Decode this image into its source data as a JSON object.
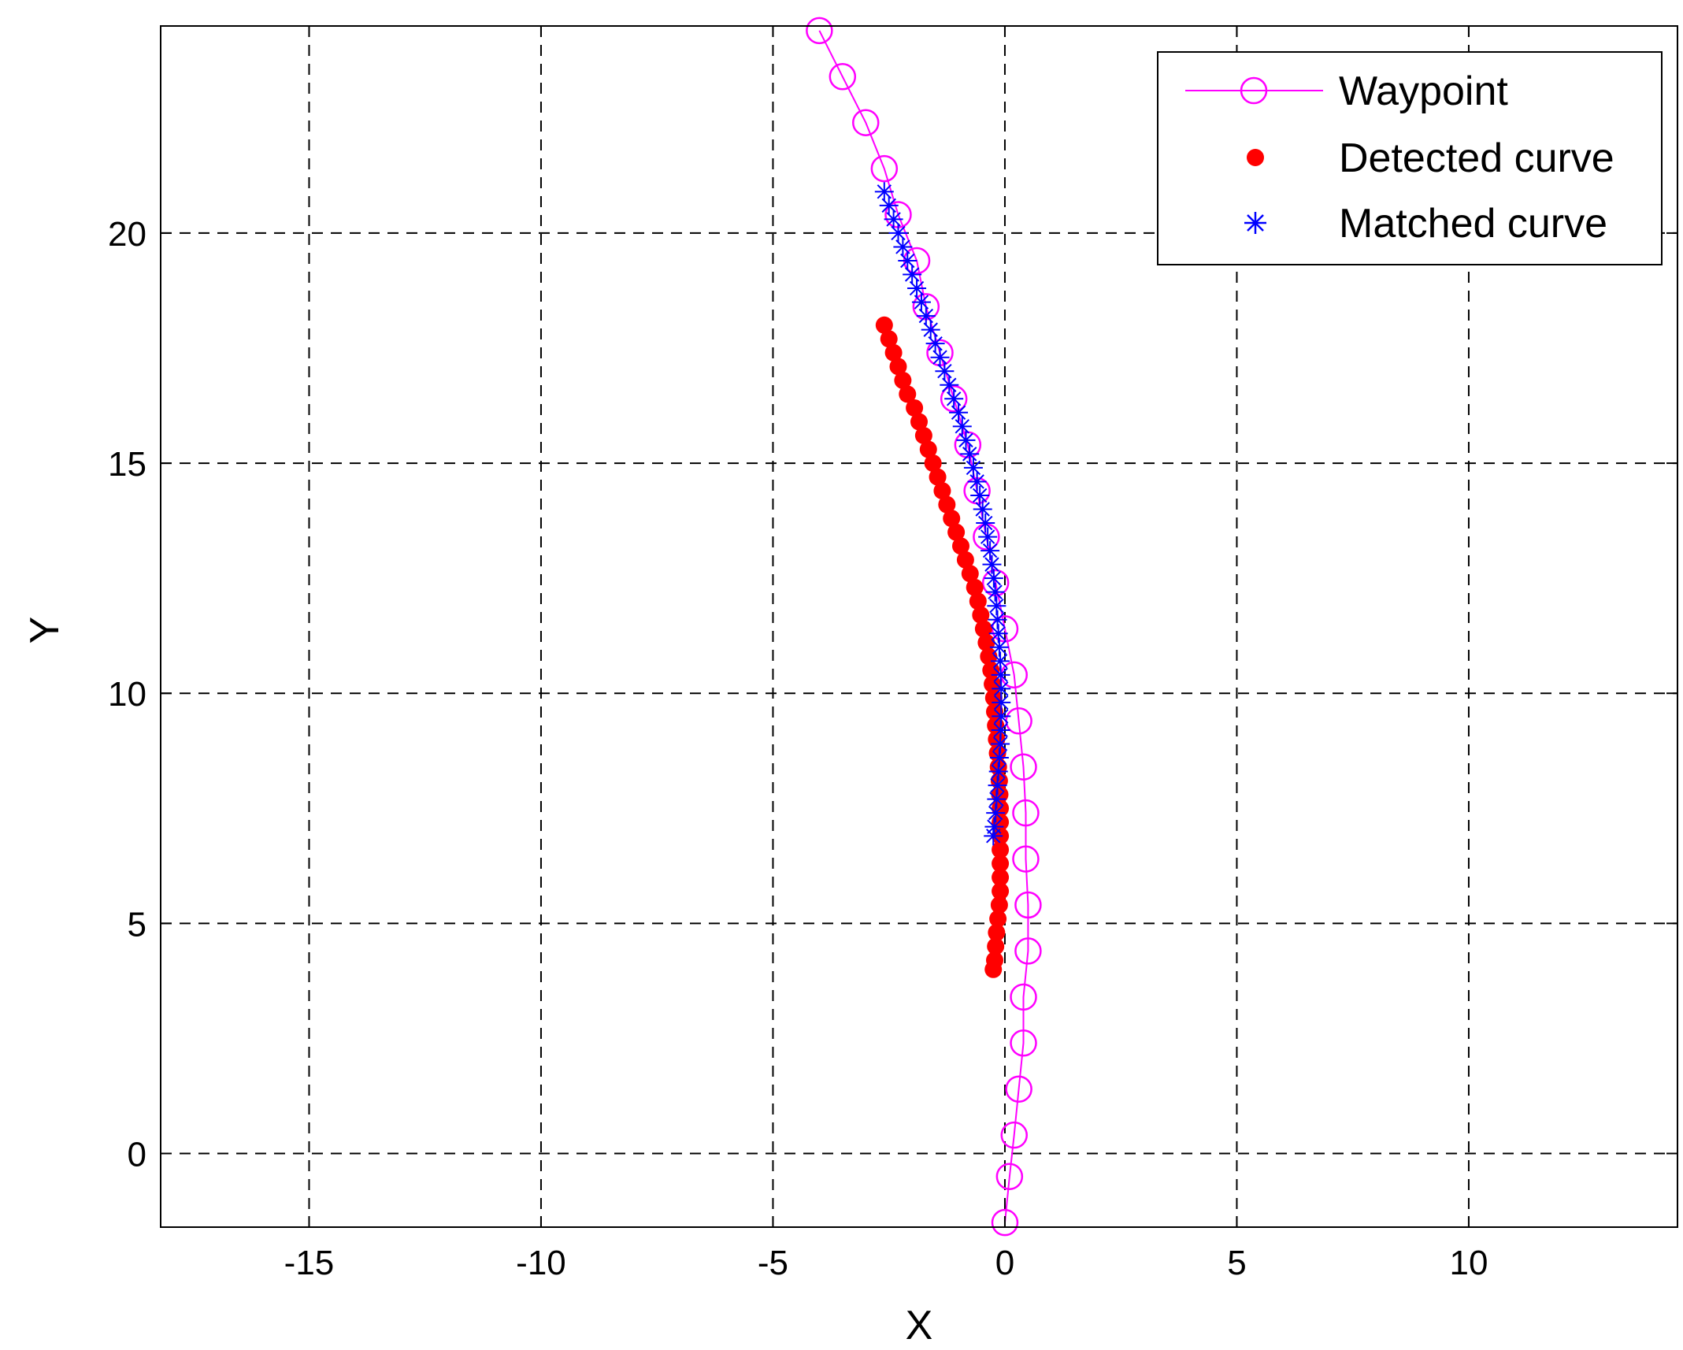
{
  "chart_data": {
    "type": "line",
    "title": "",
    "xlabel": "X",
    "ylabel": "Y",
    "xlim": [
      -18.2,
      14.5
    ],
    "ylim": [
      -1.6,
      24.5
    ],
    "xticks": [
      -15,
      -10,
      -5,
      0,
      5,
      10
    ],
    "yticks": [
      0,
      5,
      10,
      15,
      20
    ],
    "xtick_labels": [
      "-15",
      "-10",
      "-5",
      "0",
      "5",
      "10"
    ],
    "ytick_labels": [
      "0",
      "5",
      "10",
      "15",
      "20"
    ],
    "grid": true,
    "legend_position": "top-right",
    "series": [
      {
        "name": "Waypoint",
        "marker": "open-circle",
        "line": "solid",
        "color": "#ff00ff",
        "points": [
          [
            -4.0,
            24.4
          ],
          [
            -3.5,
            23.4
          ],
          [
            -3.0,
            22.4
          ],
          [
            -2.6,
            21.4
          ],
          [
            -2.3,
            20.4
          ],
          [
            -1.9,
            19.4
          ],
          [
            -1.7,
            18.4
          ],
          [
            -1.4,
            17.4
          ],
          [
            -1.1,
            16.4
          ],
          [
            -0.8,
            15.4
          ],
          [
            -0.6,
            14.4
          ],
          [
            -0.4,
            13.4
          ],
          [
            -0.2,
            12.4
          ],
          [
            0.0,
            11.4
          ],
          [
            0.2,
            10.4
          ],
          [
            0.3,
            9.4
          ],
          [
            0.4,
            8.4
          ],
          [
            0.45,
            7.4
          ],
          [
            0.45,
            6.4
          ],
          [
            0.5,
            5.4
          ],
          [
            0.5,
            4.4
          ],
          [
            0.4,
            3.4
          ],
          [
            0.4,
            2.4
          ],
          [
            0.3,
            1.4
          ],
          [
            0.2,
            0.4
          ],
          [
            0.1,
            -0.5
          ],
          [
            0.0,
            -1.5
          ]
        ]
      },
      {
        "name": "Detected curve",
        "marker": "filled-circle",
        "line": "none",
        "color": "#ff0000",
        "points": [
          [
            -2.6,
            18.0
          ],
          [
            -2.5,
            17.7
          ],
          [
            -2.4,
            17.4
          ],
          [
            -2.3,
            17.1
          ],
          [
            -2.2,
            16.8
          ],
          [
            -2.1,
            16.5
          ],
          [
            -1.95,
            16.2
          ],
          [
            -1.85,
            15.9
          ],
          [
            -1.75,
            15.6
          ],
          [
            -1.65,
            15.3
          ],
          [
            -1.55,
            15.0
          ],
          [
            -1.45,
            14.7
          ],
          [
            -1.35,
            14.4
          ],
          [
            -1.25,
            14.1
          ],
          [
            -1.15,
            13.8
          ],
          [
            -1.05,
            13.5
          ],
          [
            -0.95,
            13.2
          ],
          [
            -0.85,
            12.9
          ],
          [
            -0.75,
            12.6
          ],
          [
            -0.65,
            12.3
          ],
          [
            -0.58,
            12.0
          ],
          [
            -0.52,
            11.7
          ],
          [
            -0.46,
            11.4
          ],
          [
            -0.4,
            11.1
          ],
          [
            -0.35,
            10.8
          ],
          [
            -0.3,
            10.5
          ],
          [
            -0.27,
            10.2
          ],
          [
            -0.24,
            9.9
          ],
          [
            -0.22,
            9.6
          ],
          [
            -0.2,
            9.3
          ],
          [
            -0.18,
            9.0
          ],
          [
            -0.16,
            8.7
          ],
          [
            -0.14,
            8.4
          ],
          [
            -0.12,
            8.1
          ],
          [
            -0.11,
            7.8
          ],
          [
            -0.1,
            7.5
          ],
          [
            -0.1,
            7.2
          ],
          [
            -0.1,
            6.9
          ],
          [
            -0.1,
            6.6
          ],
          [
            -0.1,
            6.3
          ],
          [
            -0.1,
            6.0
          ],
          [
            -0.1,
            5.7
          ],
          [
            -0.12,
            5.4
          ],
          [
            -0.15,
            5.1
          ],
          [
            -0.18,
            4.8
          ],
          [
            -0.2,
            4.5
          ],
          [
            -0.22,
            4.2
          ],
          [
            -0.25,
            4.0
          ]
        ]
      },
      {
        "name": "Matched curve",
        "marker": "asterisk",
        "line": "none",
        "color": "#0000ff",
        "points": [
          [
            -2.6,
            20.9
          ],
          [
            -2.5,
            20.6
          ],
          [
            -2.4,
            20.3
          ],
          [
            -2.3,
            20.0
          ],
          [
            -2.2,
            19.7
          ],
          [
            -2.1,
            19.4
          ],
          [
            -2.0,
            19.1
          ],
          [
            -1.9,
            18.8
          ],
          [
            -1.8,
            18.5
          ],
          [
            -1.7,
            18.2
          ],
          [
            -1.6,
            17.9
          ],
          [
            -1.5,
            17.6
          ],
          [
            -1.4,
            17.3
          ],
          [
            -1.3,
            17.0
          ],
          [
            -1.2,
            16.7
          ],
          [
            -1.1,
            16.4
          ],
          [
            -1.0,
            16.1
          ],
          [
            -0.92,
            15.8
          ],
          [
            -0.84,
            15.5
          ],
          [
            -0.76,
            15.2
          ],
          [
            -0.68,
            14.9
          ],
          [
            -0.6,
            14.6
          ],
          [
            -0.54,
            14.3
          ],
          [
            -0.48,
            14.0
          ],
          [
            -0.42,
            13.7
          ],
          [
            -0.37,
            13.4
          ],
          [
            -0.32,
            13.1
          ],
          [
            -0.28,
            12.8
          ],
          [
            -0.24,
            12.5
          ],
          [
            -0.21,
            12.2
          ],
          [
            -0.18,
            11.9
          ],
          [
            -0.16,
            11.6
          ],
          [
            -0.14,
            11.3
          ],
          [
            -0.12,
            11.0
          ],
          [
            -0.1,
            10.7
          ],
          [
            -0.09,
            10.4
          ],
          [
            -0.08,
            10.1
          ],
          [
            -0.08,
            9.8
          ],
          [
            -0.08,
            9.5
          ],
          [
            -0.09,
            9.2
          ],
          [
            -0.1,
            8.9
          ],
          [
            -0.12,
            8.6
          ],
          [
            -0.14,
            8.3
          ],
          [
            -0.16,
            8.0
          ],
          [
            -0.18,
            7.7
          ],
          [
            -0.2,
            7.4
          ],
          [
            -0.23,
            7.1
          ],
          [
            -0.25,
            6.9
          ]
        ]
      }
    ]
  }
}
